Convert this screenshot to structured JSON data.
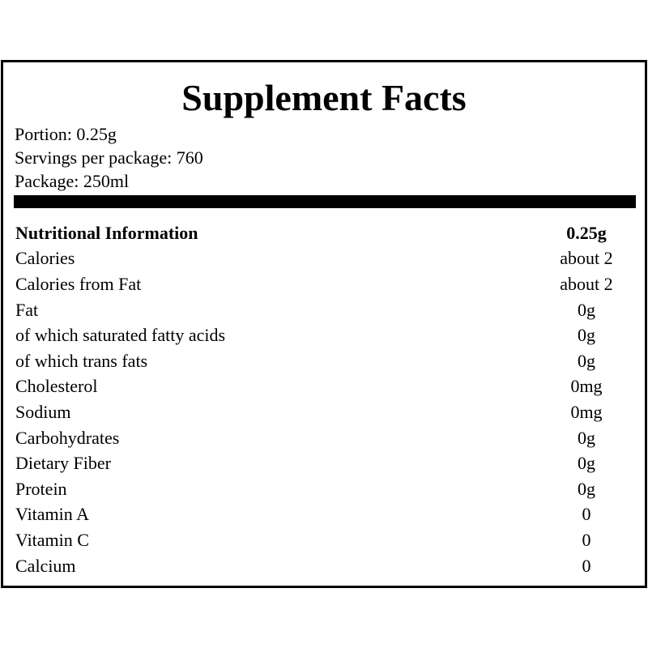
{
  "title": "Supplement Facts",
  "meta": [
    "Portion: 0.25g",
    "Servings per package: 760",
    "Package: 250ml"
  ],
  "header": {
    "label": "Nutritional Information",
    "value": "0.25g"
  },
  "rows": [
    {
      "label": "Calories",
      "value": "about 2"
    },
    {
      "label": "Calories from Fat",
      "value": "about 2"
    },
    {
      "label": "Fat",
      "value": "0g"
    },
    {
      "label": "of which saturated fatty acids",
      "value": "0g"
    },
    {
      "label": "of which trans fats",
      "value": "0g"
    },
    {
      "label": "Cholesterol",
      "value": "0mg"
    },
    {
      "label": "Sodium",
      "value": "0mg"
    },
    {
      "label": "Carbohydrates",
      "value": "0g"
    },
    {
      "label": "Dietary Fiber",
      "value": "0g"
    },
    {
      "label": "Protein",
      "value": "0g"
    },
    {
      "label": "Vitamin A",
      "value": "0"
    },
    {
      "label": "Vitamin C",
      "value": "0"
    },
    {
      "label": "Calcium",
      "value": "0"
    }
  ]
}
